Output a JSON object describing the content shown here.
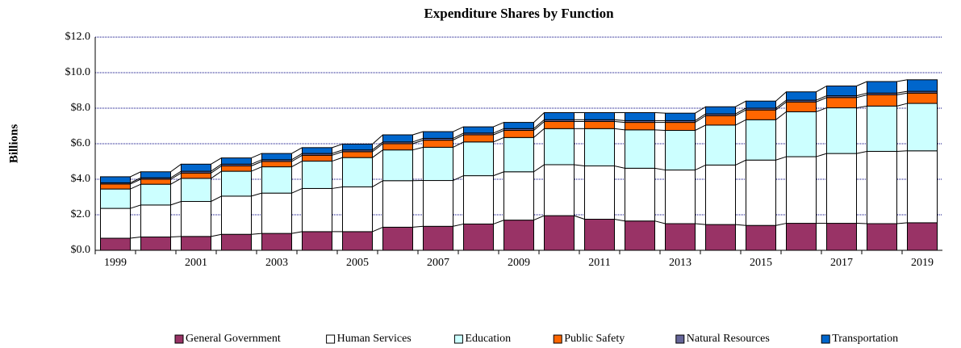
{
  "chart_data": {
    "type": "bar",
    "stacked": true,
    "title": "Expenditure Shares by Function",
    "y_label": "Billions",
    "categories": [
      "1999",
      null,
      "2001",
      null,
      "2003",
      null,
      "2005",
      null,
      "2007",
      null,
      "2009",
      null,
      "2011",
      null,
      "2013",
      null,
      "2015",
      null,
      "2017",
      null,
      "2019"
    ],
    "series": [
      {
        "name": "General Government",
        "color": "#993366",
        "values": [
          0.68,
          0.75,
          0.78,
          0.9,
          0.95,
          1.05,
          1.05,
          1.3,
          1.35,
          1.48,
          1.7,
          1.95,
          1.75,
          1.65,
          1.5,
          1.45,
          1.4,
          1.52,
          1.52,
          1.5,
          1.55
        ]
      },
      {
        "name": "Human Services",
        "color": "#ffffff",
        "values": [
          1.68,
          1.8,
          1.97,
          2.15,
          2.27,
          2.43,
          2.52,
          2.62,
          2.58,
          2.72,
          2.72,
          2.87,
          3.0,
          2.97,
          3.02,
          3.35,
          3.68,
          3.75,
          3.93,
          4.07,
          4.05
        ]
      },
      {
        "name": "Education",
        "color": "#ccffff",
        "values": [
          1.09,
          1.17,
          1.3,
          1.4,
          1.48,
          1.54,
          1.65,
          1.73,
          1.87,
          1.9,
          1.93,
          2.03,
          2.1,
          2.16,
          2.23,
          2.25,
          2.27,
          2.53,
          2.57,
          2.55,
          2.67
        ]
      },
      {
        "name": "Public Safety",
        "color": "#ff6600",
        "values": [
          0.28,
          0.28,
          0.3,
          0.3,
          0.3,
          0.33,
          0.33,
          0.35,
          0.4,
          0.4,
          0.4,
          0.4,
          0.4,
          0.42,
          0.45,
          0.53,
          0.55,
          0.55,
          0.58,
          0.63,
          0.58
        ]
      },
      {
        "name": "Natural Resources",
        "color": "#666699",
        "values": [
          0.07,
          0.08,
          0.1,
          0.1,
          0.1,
          0.1,
          0.1,
          0.1,
          0.1,
          0.1,
          0.1,
          0.1,
          0.1,
          0.1,
          0.1,
          0.1,
          0.1,
          0.1,
          0.1,
          0.1,
          0.1
        ]
      },
      {
        "name": "Transportation",
        "color": "#0066cc",
        "values": [
          0.34,
          0.34,
          0.4,
          0.35,
          0.35,
          0.33,
          0.33,
          0.4,
          0.38,
          0.35,
          0.35,
          0.4,
          0.4,
          0.45,
          0.42,
          0.4,
          0.4,
          0.47,
          0.55,
          0.65,
          0.65
        ]
      }
    ],
    "ylim": [
      0,
      12
    ],
    "yticks": [
      {
        "value": 0,
        "label": "$0.0"
      },
      {
        "value": 2,
        "label": "$2.0"
      },
      {
        "value": 4,
        "label": "$4.0"
      },
      {
        "value": 6,
        "label": "$6.0"
      },
      {
        "value": 8,
        "label": "$8.0"
      },
      {
        "value": 10,
        "label": "$10.0"
      },
      {
        "value": 12,
        "label": "$12.0"
      }
    ],
    "grid": true,
    "grid_color": "#000080",
    "legend": "bottom"
  }
}
